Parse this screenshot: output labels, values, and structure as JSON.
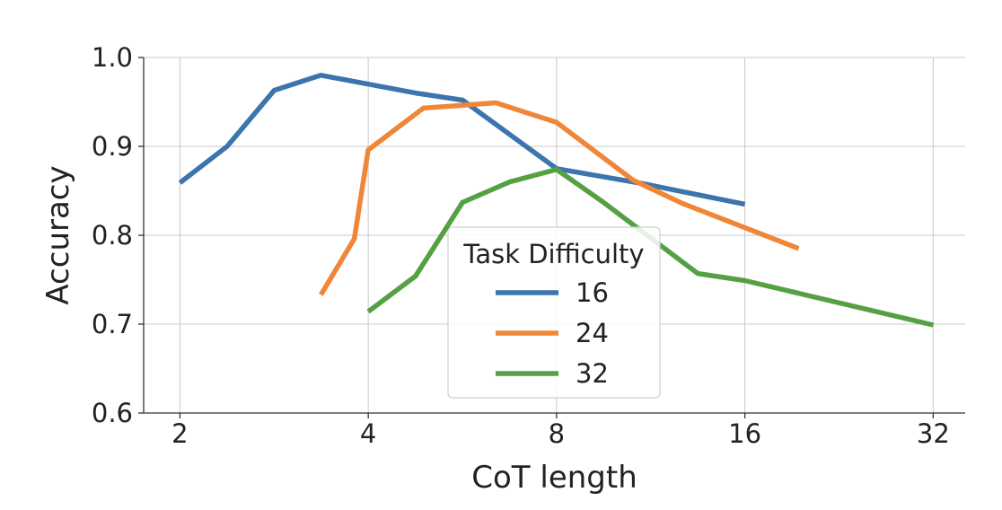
{
  "chart_data": {
    "type": "line",
    "xlabel": "CoT length",
    "ylabel": "Accuracy",
    "x_scale": "log2",
    "xlim": [
      1.75,
      36
    ],
    "ylim": [
      0.6,
      1.0
    ],
    "x_ticks": [
      2,
      4,
      8,
      16,
      32
    ],
    "x_tick_labels": [
      "2",
      "4",
      "8",
      "16",
      "32"
    ],
    "y_ticks": [
      0.6,
      0.7,
      0.8,
      0.9,
      1.0
    ],
    "y_tick_labels": [
      "0.6",
      "0.7",
      "0.8",
      "0.9",
      "1.0"
    ],
    "grid": true,
    "legend": {
      "title": "Task Difficulty",
      "placement": "center-bottom"
    },
    "series": [
      {
        "name": "16",
        "color": "#3c74ad",
        "x": [
          2,
          2.38,
          2.83,
          3.36,
          4,
          4.76,
          5.66,
          8,
          11,
          16
        ],
        "y": [
          0.859,
          0.9,
          0.963,
          0.98,
          0.97,
          0.96,
          0.952,
          0.875,
          0.858,
          0.835
        ]
      },
      {
        "name": "24",
        "color": "#ef8638",
        "x": [
          3.36,
          3.8,
          4,
          4.9,
          5.6,
          6.4,
          8,
          10.6,
          12.7,
          19.5
        ],
        "y": [
          0.733,
          0.796,
          0.896,
          0.943,
          0.946,
          0.949,
          0.927,
          0.862,
          0.836,
          0.785
        ]
      },
      {
        "name": "32",
        "color": "#55a043",
        "x": [
          4,
          4.76,
          5.66,
          6.73,
          8,
          9.51,
          13.45,
          16,
          32
        ],
        "y": [
          0.714,
          0.754,
          0.837,
          0.86,
          0.874,
          0.837,
          0.757,
          0.749,
          0.699
        ]
      }
    ]
  }
}
